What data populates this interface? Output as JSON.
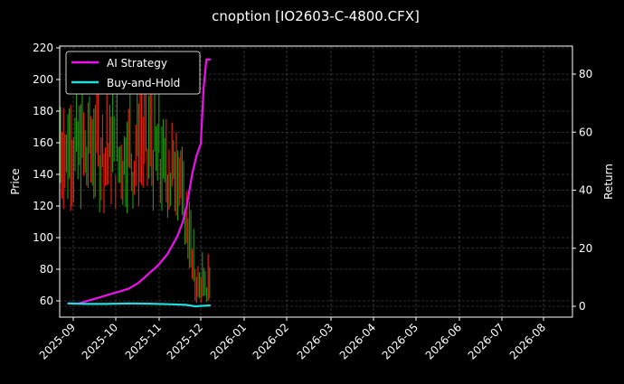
{
  "title": "cnoption [IO2603-C-4800.CFX]",
  "colors": {
    "background": "#000000",
    "ai_strategy": "#ee11ee",
    "buy_and_hold": "#22dddd",
    "candle_up": "#ee2211",
    "candle_down": "#229911",
    "grid": "#555555",
    "axis": "#ffffff"
  },
  "legend": {
    "items": [
      {
        "label": "AI Strategy",
        "color": "#ee11ee"
      },
      {
        "label": "Buy-and-Hold",
        "color": "#22dddd"
      }
    ]
  },
  "chart_data": {
    "type": "line",
    "title": "cnoption [IO2603-C-4800.CFX]",
    "xlabel": "",
    "ylabel_left": "Price",
    "ylabel_right": "Return",
    "x_tick_labels": [
      "2025-09",
      "2025-10",
      "2025-11",
      "2025-12",
      "2026-01",
      "2026-02",
      "2026-03",
      "2026-04",
      "2026-05",
      "2026-06",
      "2026-07",
      "2026-08"
    ],
    "y_left_ticks": [
      60,
      80,
      100,
      120,
      140,
      160,
      180,
      200,
      220
    ],
    "y_right_ticks": [
      0,
      20,
      40,
      60,
      80
    ],
    "y_left_range": [
      50,
      220
    ],
    "y_right_range": [
      -3,
      88
    ],
    "grid": true,
    "legend_position": "upper left",
    "series": [
      {
        "name": "AI Strategy",
        "axis": "right",
        "x": [
          "2025-08-28",
          "2025-09-05",
          "2025-09-12",
          "2025-09-19",
          "2025-09-26",
          "2025-10-03",
          "2025-10-10",
          "2025-10-17",
          "2025-10-24",
          "2025-10-31",
          "2025-11-07",
          "2025-11-14",
          "2025-11-18",
          "2025-11-21",
          "2025-11-25",
          "2025-11-28",
          "2025-12-01",
          "2025-12-03",
          "2025-12-05",
          "2025-12-08"
        ],
        "values": [
          1,
          1,
          2,
          3,
          4,
          5,
          6,
          8,
          11,
          14,
          18,
          24,
          29,
          35,
          46,
          52,
          56,
          75,
          85,
          85
        ]
      },
      {
        "name": "Buy-and-Hold",
        "axis": "right",
        "x": [
          "2025-08-28",
          "2025-09-10",
          "2025-09-25",
          "2025-10-10",
          "2025-10-25",
          "2025-11-10",
          "2025-11-20",
          "2025-11-27",
          "2025-12-08"
        ],
        "values": [
          1,
          0.8,
          0.8,
          1,
          0.9,
          0.7,
          0.5,
          0,
          0.3
        ]
      },
      {
        "name": "Price (candles)",
        "axis": "left",
        "type": "candlestick",
        "note": "approximate high/low ranges of daily candles, roughly 140-200 in Sept-Oct, falling to ~60 by early Dec",
        "range_by_period": {
          "2025-09": [
            115,
            200
          ],
          "2025-10": [
            120,
            190
          ],
          "2025-11": [
            110,
            190
          ],
          "2025-12": [
            58,
            92
          ]
        }
      }
    ]
  }
}
